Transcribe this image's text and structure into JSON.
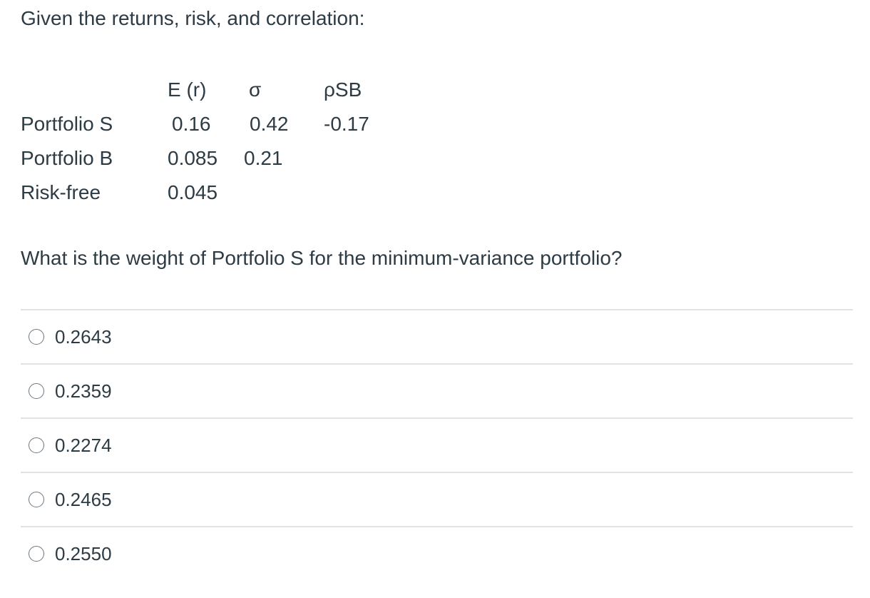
{
  "intro": "Given the returns, risk, and correlation:",
  "table": {
    "headers": {
      "er": "E (r)",
      "sigma": "σ",
      "rho": "ρSB"
    },
    "rows": [
      {
        "label": "Portfolio S",
        "er": "0.16",
        "sigma": "0.42",
        "rho": "-0.17"
      },
      {
        "label": "Portfolio B",
        "er": "0.085",
        "sigma": "0.21",
        "rho": ""
      },
      {
        "label": "Risk-free",
        "er": "0.045",
        "sigma": "",
        "rho": ""
      }
    ]
  },
  "question": "What is the weight of Portfolio S for the minimum-variance portfolio?",
  "answers": [
    {
      "label": "0.2643"
    },
    {
      "label": "0.2359"
    },
    {
      "label": "0.2274"
    },
    {
      "label": "0.2465"
    },
    {
      "label": "0.2550"
    }
  ]
}
